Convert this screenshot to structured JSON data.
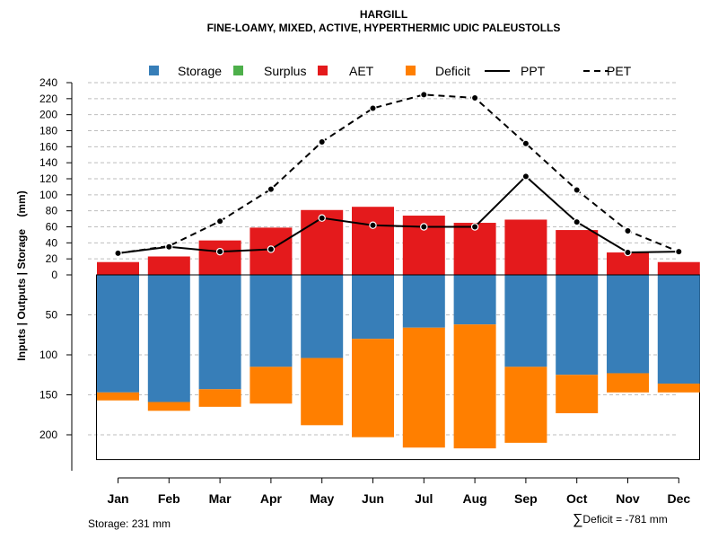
{
  "title": "HARGILL",
  "subtitle": "FINE-LOAMY, MIXED, ACTIVE, HYPERTHERMIC UDIC PALEUSTOLLS",
  "footer": {
    "storage": "Storage: 231 mm",
    "deficit_symbol": "∑",
    "deficit": "Deficit = -781 mm"
  },
  "colors": {
    "storage": "#377EB8",
    "surplus": "#4DAF4A",
    "aet": "#E41A1C",
    "deficit": "#FF7F00",
    "line": "#000000",
    "grid": "#BEBEBE"
  },
  "chart_data": {
    "type": "bar",
    "ylabel": "Inputs | Outputs | Storage    (mm)",
    "categories": [
      "Jan",
      "Feb",
      "Mar",
      "Apr",
      "May",
      "Jun",
      "Jul",
      "Aug",
      "Sep",
      "Oct",
      "Nov",
      "Dec"
    ],
    "y_ticks_top": [
      "240",
      "220",
      "200",
      "180",
      "160",
      "140",
      "120",
      "100",
      "80",
      "60",
      "40",
      "20",
      "0"
    ],
    "y_ticks_bottom": [
      "50",
      "100",
      "150",
      "200"
    ],
    "ylim_top": [
      0,
      240
    ],
    "ylim_bottom": [
      0,
      231
    ],
    "legend": [
      {
        "label": "Storage",
        "kind": "box",
        "color": "#377EB8"
      },
      {
        "label": "Surplus",
        "kind": "box",
        "color": "#4DAF4A"
      },
      {
        "label": "AET",
        "kind": "box",
        "color": "#E41A1C"
      },
      {
        "label": "Deficit",
        "kind": "box",
        "color": "#FF7F00"
      },
      {
        "label": "PPT",
        "kind": "solid"
      },
      {
        "label": "PET",
        "kind": "dashed"
      }
    ],
    "series": [
      {
        "name": "AET",
        "values": [
          16,
          23,
          43,
          59,
          81,
          85,
          74,
          65,
          69,
          56,
          28,
          16
        ]
      },
      {
        "name": "Storage",
        "values": [
          147,
          159,
          143,
          115,
          104,
          80,
          66,
          62,
          115,
          125,
          123,
          136
        ]
      },
      {
        "name": "Deficit",
        "values": [
          10,
          11,
          22,
          46,
          84,
          123,
          150,
          155,
          95,
          48,
          24,
          11
        ]
      },
      {
        "name": "Surplus",
        "values": [
          0,
          0,
          0,
          0,
          0,
          0,
          0,
          0,
          0,
          0,
          0,
          0
        ]
      },
      {
        "name": "PPT",
        "values": [
          27,
          35,
          29,
          32,
          71,
          62,
          60,
          60,
          123,
          66,
          28,
          29
        ]
      },
      {
        "name": "PET",
        "values": [
          27,
          36,
          67,
          107,
          166,
          208,
          225,
          221,
          164,
          106,
          55,
          29
        ]
      }
    ]
  }
}
